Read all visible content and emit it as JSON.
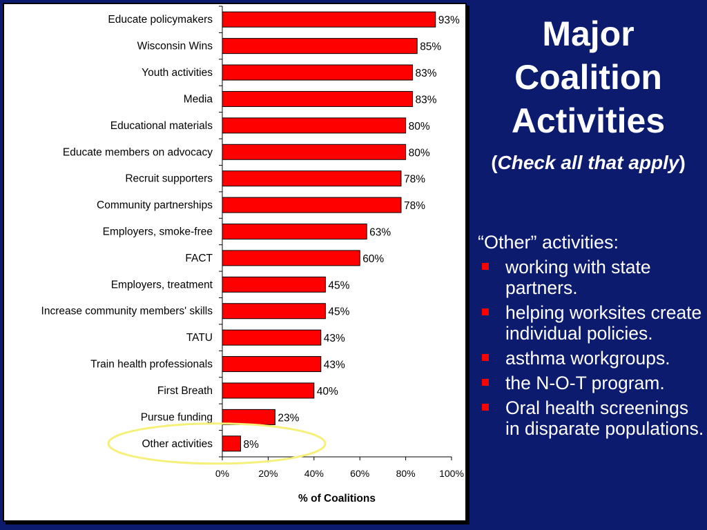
{
  "slide": {
    "title": "Major Coalition Activities",
    "title_lines": [
      "Major",
      "Coalition",
      "Activities"
    ],
    "subtitle_open": "(",
    "subtitle_italic": "Check all that apply",
    "subtitle_close": ")",
    "other_heading": "“Other” activities:",
    "bullets": [
      "working with state partners.",
      "helping worksites create individual policies.",
      "asthma workgroups.",
      "the N-O-T program.",
      "Oral health screenings in disparate populations."
    ],
    "colors": {
      "background": "#0d1b6e",
      "bar": "#ff0000",
      "bullet": "#ff0000",
      "highlight_ellipse": "#f5f07a"
    }
  },
  "chart_data": {
    "type": "bar",
    "orientation": "horizontal",
    "categories": [
      "Educate policymakers",
      "Wisconsin Wins",
      "Youth activities",
      "Media",
      "Educational materials",
      "Educate members on advocacy",
      "Recruit supporters",
      "Community partnerships",
      "Employers, smoke-free",
      "FACT",
      "Employers, treatment",
      "Increase community members' skills",
      "TATU",
      "Train health professionals",
      "First Breath",
      "Pursue funding",
      "Other activities"
    ],
    "values": [
      93,
      85,
      83,
      83,
      80,
      80,
      78,
      78,
      63,
      60,
      45,
      45,
      43,
      43,
      40,
      23,
      8
    ],
    "value_labels": [
      "93%",
      "85%",
      "83%",
      "83%",
      "80%",
      "80%",
      "78%",
      "78%",
      "63%",
      "60%",
      "45%",
      "45%",
      "43%",
      "43%",
      "40%",
      "23%",
      "8%"
    ],
    "xlabel": "% of Coalitions",
    "ylabel": "",
    "xlim": [
      0,
      100
    ],
    "xticks": [
      "0%",
      "20%",
      "40%",
      "60%",
      "80%",
      "100%"
    ],
    "grid": false,
    "highlighted_category": "Other activities"
  }
}
